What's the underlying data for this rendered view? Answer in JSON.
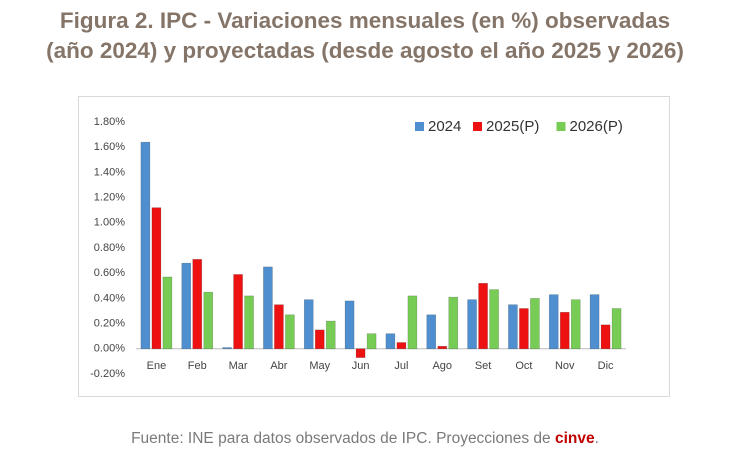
{
  "chart_data": {
    "type": "bar",
    "title": [
      "Figura 2. IPC - Variaciones mensuales (en %) observadas",
      "(año 2024) y proyectadas (desde agosto el año 2025 y 2026)"
    ],
    "categories": [
      "Ene",
      "Feb",
      "Mar",
      "Abr",
      "May",
      "Jun",
      "Jul",
      "Ago",
      "Set",
      "Oct",
      "Nov",
      "Dic"
    ],
    "series": [
      {
        "name": "2024",
        "color": "#4f8fd0",
        "values": [
          1.64,
          0.68,
          0.01,
          0.65,
          0.39,
          0.38,
          0.12,
          0.27,
          0.39,
          0.35,
          0.43,
          0.43
        ]
      },
      {
        "name": "2025(P)",
        "color": "#ee1111",
        "values": [
          1.12,
          0.71,
          0.59,
          0.35,
          0.15,
          -0.07,
          0.05,
          0.02,
          0.52,
          0.32,
          0.29,
          0.19
        ]
      },
      {
        "name": "2026(P)",
        "color": "#77cc55",
        "values": [
          0.57,
          0.45,
          0.42,
          0.27,
          0.22,
          0.12,
          0.42,
          0.41,
          0.47,
          0.4,
          0.39,
          0.32
        ]
      }
    ],
    "ylim": [
      -0.2,
      1.8
    ],
    "yticks": [
      {
        "value": -0.2,
        "label": "-0.20%"
      },
      {
        "value": 0,
        "label": "0.00%"
      },
      {
        "value": 0.2,
        "label": "0.20%"
      },
      {
        "value": 0.4,
        "label": "0.40%"
      },
      {
        "value": 0.6,
        "label": "0.60%"
      },
      {
        "value": 0.8,
        "label": "0.80%"
      },
      {
        "value": 1.0,
        "label": "1.00%"
      },
      {
        "value": 1.2,
        "label": "1.20%"
      },
      {
        "value": 1.4,
        "label": "1.40%"
      },
      {
        "value": 1.6,
        "label": "1.60%"
      },
      {
        "value": 1.8,
        "label": "1.80%"
      }
    ],
    "grid": false,
    "legend": "top-right"
  },
  "source": {
    "text": "Fuente: INE para datos observados de IPC. Proyecciones de ",
    "highlight": "cinve",
    "end": "."
  }
}
